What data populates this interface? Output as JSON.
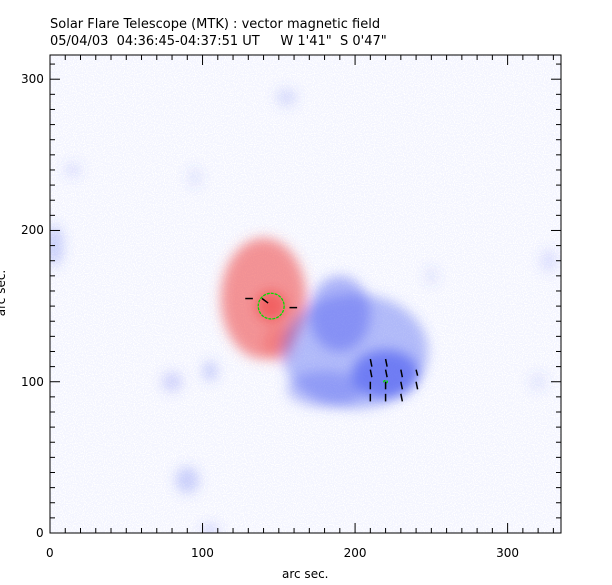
{
  "chart_data": {
    "type": "heatmap",
    "title": "Solar Flare Telescope (MTK) : vector magnetic field",
    "subtitle": "05/04/03  04:36:45-04:37:51 UT     W 1'41\"  S 0'47\"",
    "xlabel": "arc sec.",
    "ylabel": "arc sec.",
    "xlim": [
      0,
      335
    ],
    "ylim": [
      0,
      316
    ],
    "xticks": [
      0,
      100,
      200,
      300
    ],
    "yticks": [
      0,
      100,
      200,
      300
    ],
    "colors": {
      "positive": "#f05050",
      "negative": "#5060f0",
      "contour": "#00dd00",
      "vector": "#000000"
    },
    "regions": [
      {
        "polarity": "positive",
        "cx": 140,
        "cy": 155,
        "rx": 28,
        "ry": 40,
        "strength": 0.8
      },
      {
        "polarity": "positive",
        "cx": 150,
        "cy": 125,
        "rx": 10,
        "ry": 12,
        "strength": 0.4
      },
      {
        "polarity": "positive",
        "cx": 145,
        "cy": 150,
        "rx": 10,
        "ry": 10,
        "strength": 1.0
      },
      {
        "polarity": "negative",
        "cx": 200,
        "cy": 120,
        "rx": 48,
        "ry": 38,
        "strength": 0.55
      },
      {
        "polarity": "negative",
        "cx": 190,
        "cy": 145,
        "rx": 20,
        "ry": 25,
        "strength": 0.6
      },
      {
        "polarity": "negative",
        "cx": 220,
        "cy": 105,
        "rx": 22,
        "ry": 16,
        "strength": 0.9
      },
      {
        "polarity": "negative",
        "cx": 180,
        "cy": 95,
        "rx": 25,
        "ry": 12,
        "strength": 0.45
      },
      {
        "polarity": "negative",
        "cx": 80,
        "cy": 100,
        "rx": 7,
        "ry": 7,
        "strength": 0.3
      },
      {
        "polarity": "negative",
        "cx": 105,
        "cy": 107,
        "rx": 5,
        "ry": 7,
        "strength": 0.35
      },
      {
        "polarity": "negative",
        "cx": 90,
        "cy": 35,
        "rx": 8,
        "ry": 9,
        "strength": 0.35
      },
      {
        "polarity": "negative",
        "cx": 3,
        "cy": 190,
        "rx": 6,
        "ry": 14,
        "strength": 0.35
      },
      {
        "polarity": "negative",
        "cx": 15,
        "cy": 240,
        "rx": 6,
        "ry": 5,
        "strength": 0.2
      },
      {
        "polarity": "negative",
        "cx": 155,
        "cy": 288,
        "rx": 7,
        "ry": 6,
        "strength": 0.25
      },
      {
        "polarity": "negative",
        "cx": 95,
        "cy": 235,
        "rx": 5,
        "ry": 7,
        "strength": 0.15
      },
      {
        "polarity": "negative",
        "cx": 327,
        "cy": 180,
        "rx": 6,
        "ry": 8,
        "strength": 0.2
      },
      {
        "polarity": "negative",
        "cx": 250,
        "cy": 170,
        "rx": 5,
        "ry": 6,
        "strength": 0.15
      },
      {
        "polarity": "negative",
        "cx": 320,
        "cy": 100,
        "rx": 6,
        "ry": 6,
        "strength": 0.15
      },
      {
        "polarity": "negative",
        "cx": 105,
        "cy": 2,
        "rx": 6,
        "ry": 4,
        "strength": 0.3
      }
    ],
    "contours": [
      {
        "cx": 145,
        "cy": 150,
        "rx": 8.5,
        "ry": 8.5
      },
      {
        "cx": 220,
        "cy": 100,
        "rx": 1.2,
        "ry": 0.8
      }
    ],
    "vectors": [
      {
        "x": 133,
        "y": 155,
        "dx": -5,
        "dy": 0
      },
      {
        "x": 139,
        "y": 155,
        "dx": 4,
        "dy": -3
      },
      {
        "x": 157,
        "y": 149,
        "dx": 5,
        "dy": 0
      },
      {
        "x": 210,
        "y": 115,
        "dx": 1,
        "dy": -5
      },
      {
        "x": 220,
        "y": 115,
        "dx": 1,
        "dy": -5
      },
      {
        "x": 210,
        "y": 108,
        "dx": 1,
        "dy": -5
      },
      {
        "x": 220,
        "y": 108,
        "dx": 1,
        "dy": -5
      },
      {
        "x": 230,
        "y": 108,
        "dx": 1,
        "dy": -5
      },
      {
        "x": 240,
        "y": 108,
        "dx": 1,
        "dy": -4
      },
      {
        "x": 210,
        "y": 100,
        "dx": 0,
        "dy": -5
      },
      {
        "x": 220,
        "y": 100,
        "dx": 0,
        "dy": -5
      },
      {
        "x": 230,
        "y": 100,
        "dx": 1,
        "dy": -5
      },
      {
        "x": 240,
        "y": 100,
        "dx": 1,
        "dy": -5
      },
      {
        "x": 210,
        "y": 92,
        "dx": 0,
        "dy": -5
      },
      {
        "x": 220,
        "y": 92,
        "dx": 0,
        "dy": -5
      },
      {
        "x": 230,
        "y": 92,
        "dx": 1,
        "dy": -5
      }
    ]
  }
}
